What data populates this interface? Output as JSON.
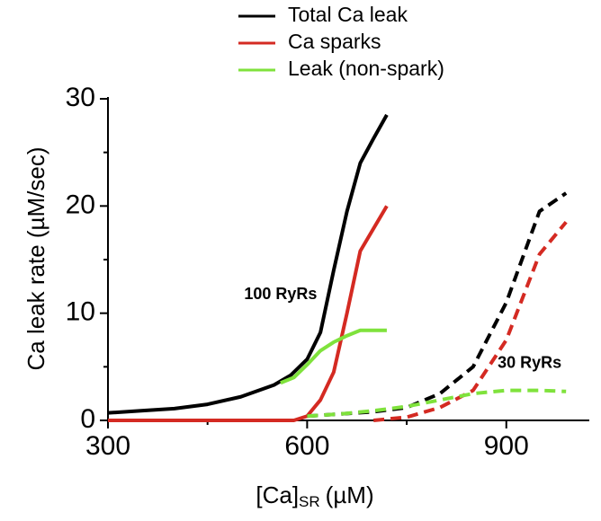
{
  "chart_data": {
    "type": "line",
    "xlabel": {
      "main": "[Ca]",
      "sub": "SR",
      "unit": "(µM)"
    },
    "ylabel": "Ca leak rate (µM/sec)",
    "xlim": [
      300,
      1025
    ],
    "ylim": [
      0,
      30
    ],
    "xticks": [
      300,
      600,
      900
    ],
    "xminor": [
      450,
      750
    ],
    "yticks": [
      0,
      10,
      20,
      30
    ],
    "yminor": [
      5,
      15,
      25
    ],
    "annotations": [
      {
        "text": "100 RyRs",
        "x": 560,
        "y": 11.7
      },
      {
        "text": "30 RyRs",
        "x": 935,
        "y": 5.3
      }
    ],
    "series": [
      {
        "name": "Total  Ca leak",
        "color": "#000000",
        "dashed": false,
        "x": [
          300,
          350,
          400,
          450,
          500,
          550,
          575,
          600,
          620,
          640,
          660,
          680,
          700,
          720
        ],
        "values": [
          0.7,
          0.9,
          1.1,
          1.5,
          2.2,
          3.3,
          4.2,
          5.7,
          8.2,
          14,
          19.5,
          24,
          26.3,
          28.5
        ]
      },
      {
        "name": "Ca sparks",
        "color": "#d42a22",
        "dashed": false,
        "x": [
          300,
          580,
          600,
          620,
          640,
          660,
          680,
          720
        ],
        "values": [
          0,
          0,
          0.4,
          1.9,
          4.5,
          10,
          15.8,
          20
        ]
      },
      {
        "name": "Leak (non-spark)",
        "color": "#7fe23c",
        "dashed": false,
        "x": [
          560,
          580,
          600,
          620,
          640,
          660,
          680,
          720
        ],
        "values": [
          3.5,
          4,
          5.2,
          6.5,
          7.3,
          7.9,
          8.4,
          8.4
        ]
      },
      {
        "color": "#000000",
        "dashed": true,
        "x": [
          600,
          650,
          700,
          750,
          800,
          850,
          900,
          950,
          990
        ],
        "values": [
          0.4,
          0.6,
          0.8,
          1.2,
          2.5,
          5,
          11,
          19.5,
          21.2
        ]
      },
      {
        "color": "#d42a22",
        "dashed": true,
        "x": [
          700,
          750,
          800,
          850,
          900,
          950,
          990
        ],
        "values": [
          0,
          0.3,
          1.2,
          2.8,
          7.5,
          15.5,
          18.5
        ]
      },
      {
        "color": "#7fe23c",
        "dashed": true,
        "x": [
          600,
          650,
          700,
          750,
          800,
          850,
          900,
          950,
          990
        ],
        "values": [
          0.4,
          0.6,
          0.9,
          1.3,
          1.9,
          2.5,
          2.8,
          2.8,
          2.7
        ]
      }
    ]
  }
}
